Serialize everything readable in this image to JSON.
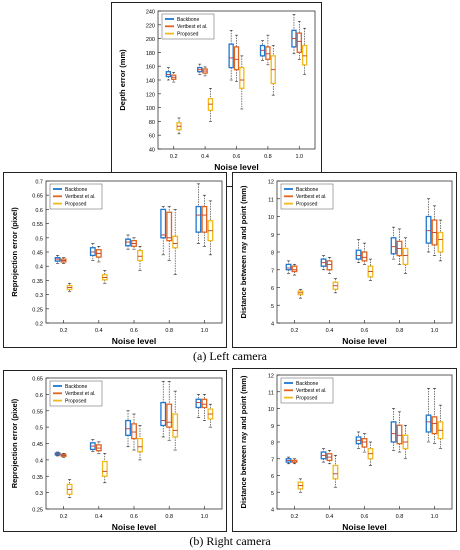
{
  "captions": [
    "(a) Left camera",
    "(b) Right camera"
  ],
  "colors": {
    "Backbone": "#1f77d0",
    "Vertbest et al.": "#e0651f",
    "Proposed": "#f2b81c"
  },
  "chart_data": [
    {
      "id": "depth",
      "type": "boxplot",
      "xlabel": "Noise level",
      "ylabel": "Depth error (mm)",
      "categories": [
        "0.2",
        "0.4",
        "0.6",
        "0.8",
        "1.0"
      ],
      "ylim": [
        40,
        240
      ],
      "yticks": [
        40,
        60,
        80,
        100,
        120,
        140,
        160,
        180,
        200,
        220,
        240
      ],
      "legend": "top-left",
      "series": [
        {
          "name": "Backbone",
          "boxes": [
            [
              140,
              145,
              148,
              152,
              158
            ],
            [
              148,
              152,
              155,
              158,
              163
            ],
            [
              140,
              158,
              172,
              192,
              212
            ],
            [
              168,
              175,
              183,
              190,
              197
            ],
            [
              178,
              188,
              200,
              212,
              235
            ]
          ]
        },
        {
          "name": "Vertbest et al.",
          "boxes": [
            [
              137,
              141,
              144,
              147,
              151
            ],
            [
              146,
              150,
              153,
              156,
              159
            ],
            [
              138,
              155,
              170,
              188,
              205
            ],
            [
              162,
              170,
              178,
              188,
              205
            ],
            [
              170,
              180,
              196,
              208,
              225
            ]
          ]
        },
        {
          "name": "Proposed",
          "boxes": [
            [
              62,
              68,
              73,
              78,
              85
            ],
            [
              80,
              96,
              105,
              113,
              128
            ],
            [
              98,
              128,
              140,
              158,
              175
            ],
            [
              118,
              135,
              155,
              175,
              190
            ],
            [
              148,
              162,
              175,
              190,
              215
            ]
          ]
        }
      ]
    },
    {
      "id": "reproj-left",
      "type": "boxplot",
      "xlabel": "Noise level",
      "ylabel": "Reprojection error (pixel)",
      "categories": [
        "0.2",
        "0.4",
        "0.6",
        "0.8",
        "1.0"
      ],
      "ylim": [
        0.2,
        0.7
      ],
      "yticks": [
        0.2,
        0.25,
        0.3,
        0.35,
        0.4,
        0.45,
        0.5,
        0.55,
        0.6,
        0.65,
        0.7
      ],
      "legend": "top-left",
      "series": [
        {
          "name": "Backbone",
          "boxes": [
            [
              0.41,
              0.418,
              0.425,
              0.43,
              0.438
            ],
            [
              0.42,
              0.438,
              0.45,
              0.465,
              0.48
            ],
            [
              0.46,
              0.472,
              0.485,
              0.495,
              0.51
            ],
            [
              0.44,
              0.5,
              0.51,
              0.6,
              0.61
            ],
            [
              0.48,
              0.52,
              0.58,
              0.61,
              0.69
            ]
          ]
        },
        {
          "name": "Vertbest et al.",
          "boxes": [
            [
              0.41,
              0.415,
              0.42,
              0.425,
              0.43
            ],
            [
              0.415,
              0.432,
              0.445,
              0.458,
              0.47
            ],
            [
              0.46,
              0.47,
              0.48,
              0.49,
              0.5
            ],
            [
              0.42,
              0.49,
              0.5,
              0.59,
              0.61
            ],
            [
              0.47,
              0.52,
              0.58,
              0.61,
              0.65
            ]
          ]
        },
        {
          "name": "Proposed",
          "boxes": [
            [
              0.31,
              0.318,
              0.325,
              0.332,
              0.34
            ],
            [
              0.34,
              0.352,
              0.36,
              0.37,
              0.385
            ],
            [
              0.385,
              0.42,
              0.435,
              0.455,
              0.47
            ],
            [
              0.37,
              0.465,
              0.48,
              0.505,
              0.6
            ],
            [
              0.44,
              0.49,
              0.525,
              0.56,
              0.63
            ]
          ]
        }
      ]
    },
    {
      "id": "dist-left",
      "type": "boxplot",
      "xlabel": "Noise level",
      "ylabel": "Distance between ray and point (mm)",
      "categories": [
        "0.2",
        "0.4",
        "0.6",
        "0.8",
        "1.0"
      ],
      "ylim": [
        4,
        12
      ],
      "yticks": [
        4,
        5,
        6,
        7,
        8,
        9,
        10,
        11,
        12
      ],
      "legend": "top-left",
      "series": [
        {
          "name": "Backbone",
          "boxes": [
            [
              6.8,
              7.0,
              7.1,
              7.3,
              7.5
            ],
            [
              7.0,
              7.2,
              7.4,
              7.6,
              7.8
            ],
            [
              7.4,
              7.6,
              7.8,
              8.1,
              8.7
            ],
            [
              7.6,
              7.9,
              8.3,
              8.8,
              9.4
            ],
            [
              8.0,
              8.5,
              9.2,
              10.0,
              11.0
            ]
          ]
        },
        {
          "name": "Vertbest et al.",
          "boxes": [
            [
              6.7,
              6.9,
              7.0,
              7.2,
              7.3
            ],
            [
              6.8,
              7.0,
              7.3,
              7.5,
              7.7
            ],
            [
              7.3,
              7.5,
              7.7,
              8.0,
              8.5
            ],
            [
              7.3,
              7.8,
              8.2,
              8.6,
              9.3
            ],
            [
              7.8,
              8.4,
              9.1,
              9.8,
              10.6
            ]
          ]
        },
        {
          "name": "Proposed",
          "boxes": [
            [
              5.4,
              5.6,
              5.7,
              5.8,
              5.9
            ],
            [
              5.7,
              5.9,
              6.1,
              6.3,
              6.5
            ],
            [
              6.4,
              6.6,
              6.9,
              7.2,
              7.6
            ],
            [
              6.8,
              7.3,
              7.8,
              8.2,
              8.8
            ],
            [
              7.5,
              8.0,
              8.7,
              9.1,
              9.8
            ]
          ]
        }
      ]
    },
    {
      "id": "reproj-right",
      "type": "boxplot",
      "xlabel": "Noise level",
      "ylabel": "Reprojection error (pixel)",
      "categories": [
        "0.2",
        "0.4",
        "0.6",
        "0.8",
        "1.0"
      ],
      "ylim": [
        0.25,
        0.65
      ],
      "yticks": [
        0.25,
        0.3,
        0.35,
        0.4,
        0.45,
        0.5,
        0.55,
        0.6,
        0.65
      ],
      "legend": "top-left",
      "series": [
        {
          "name": "Backbone",
          "boxes": [
            [
              0.412,
              0.415,
              0.418,
              0.421,
              0.424
            ],
            [
              0.425,
              0.432,
              0.442,
              0.452,
              0.462
            ],
            [
              0.44,
              0.475,
              0.495,
              0.52,
              0.55
            ],
            [
              0.47,
              0.505,
              0.52,
              0.575,
              0.64
            ],
            [
              0.53,
              0.56,
              0.575,
              0.585,
              0.6
            ]
          ]
        },
        {
          "name": "Vertbest et al.",
          "boxes": [
            [
              0.408,
              0.411,
              0.414,
              0.417,
              0.42
            ],
            [
              0.42,
              0.428,
              0.436,
              0.446,
              0.455
            ],
            [
              0.43,
              0.465,
              0.485,
              0.51,
              0.54
            ],
            [
              0.46,
              0.5,
              0.515,
              0.57,
              0.64
            ],
            [
              0.52,
              0.56,
              0.57,
              0.585,
              0.6
            ]
          ]
        },
        {
          "name": "Proposed",
          "boxes": [
            [
              0.285,
              0.295,
              0.31,
              0.325,
              0.34
            ],
            [
              0.33,
              0.35,
              0.365,
              0.395,
              0.42
            ],
            [
              0.4,
              0.425,
              0.44,
              0.465,
              0.505
            ],
            [
              0.43,
              0.47,
              0.49,
              0.54,
              0.61
            ],
            [
              0.5,
              0.525,
              0.54,
              0.555,
              0.57
            ]
          ]
        }
      ]
    },
    {
      "id": "dist-right",
      "type": "boxplot",
      "xlabel": "Noise level",
      "ylabel": "Distance between ray and point (mm)",
      "categories": [
        "0.2",
        "0.4",
        "0.6",
        "0.8",
        "1.0"
      ],
      "ylim": [
        4,
        12
      ],
      "yticks": [
        4,
        5,
        6,
        7,
        8,
        9,
        10,
        11,
        12
      ],
      "legend": "top-left",
      "series": [
        {
          "name": "Backbone",
          "boxes": [
            [
              6.7,
              6.8,
              6.9,
              7.0,
              7.1
            ],
            [
              6.8,
              7.0,
              7.2,
              7.4,
              7.6
            ],
            [
              7.6,
              7.9,
              8.1,
              8.3,
              8.6
            ],
            [
              7.5,
              8.0,
              8.5,
              9.2,
              10.0
            ],
            [
              8.0,
              8.6,
              9.2,
              9.6,
              11.2
            ]
          ]
        },
        {
          "name": "Vertbest et al.",
          "boxes": [
            [
              6.7,
              6.8,
              6.8,
              6.9,
              7.0
            ],
            [
              6.7,
              6.9,
              7.1,
              7.3,
              7.5
            ],
            [
              7.4,
              7.7,
              8.0,
              8.2,
              8.5
            ],
            [
              7.4,
              7.9,
              8.4,
              9.0,
              9.8
            ],
            [
              7.9,
              8.5,
              9.1,
              9.5,
              11.2
            ]
          ]
        },
        {
          "name": "Proposed",
          "boxes": [
            [
              5.0,
              5.2,
              5.4,
              5.6,
              5.8
            ],
            [
              5.3,
              5.8,
              6.1,
              6.6,
              7.2
            ],
            [
              6.6,
              7.0,
              7.3,
              7.6,
              8.0
            ],
            [
              7.0,
              7.6,
              8.0,
              8.4,
              9.0
            ],
            [
              7.6,
              8.2,
              8.7,
              9.2,
              10.2
            ]
          ]
        }
      ]
    }
  ]
}
